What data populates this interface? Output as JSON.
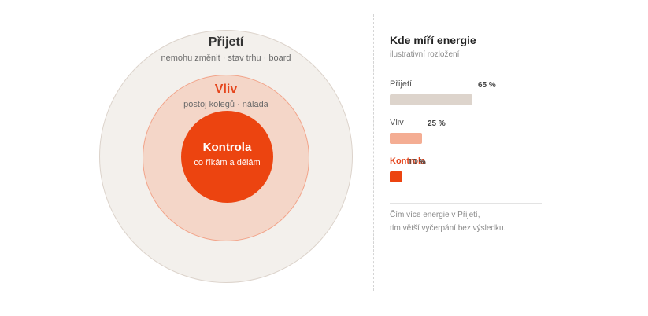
{
  "diagram": {
    "outer": {
      "title": "Přijetí",
      "subtitle": "nemohu změnit · stav trhu · board",
      "fill": "#f3f0ec",
      "stroke": "#dcd3cb"
    },
    "middle": {
      "title": "Vliv",
      "subtitle": "postoj kolegů · nálada",
      "fill": "#f4d6c8",
      "stroke": "#f2a48a",
      "title_color": "#e5461d"
    },
    "inner": {
      "title": "Kontrola",
      "subtitle": "co říkám a dělám",
      "fill": "#ec4410"
    }
  },
  "panel": {
    "title": "Kde míří energie",
    "subtitle": "ilustrativní rozložení",
    "items": [
      {
        "label": "Přijetí",
        "percent": 65,
        "value_text": "65 %",
        "color": "#ddd4cc",
        "active": false
      },
      {
        "label": "Vliv",
        "percent": 25,
        "value_text": "25 %",
        "color": "#f4ad93",
        "active": false
      },
      {
        "label": "Kontrola",
        "percent": 10,
        "value_text": "10 %",
        "color": "#ec4410",
        "active": true
      }
    ],
    "note_lines": [
      "Čím více energie v Přijetí,",
      "tím větší vyčerpání bez výsledku."
    ]
  }
}
